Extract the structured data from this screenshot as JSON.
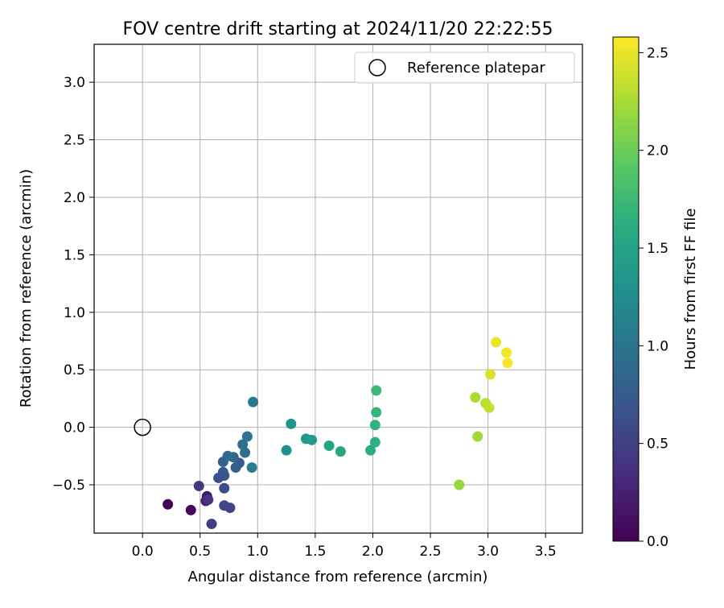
{
  "chart_data": {
    "type": "scatter",
    "title": "FOV centre drift starting at 2024/11/20 22:22:55",
    "xlabel": "Angular distance from reference (arcmin)",
    "ylabel": "Rotation from reference (arcmin)",
    "xlim": [
      -0.42,
      3.82
    ],
    "ylim": [
      -0.92,
      3.33
    ],
    "xticks": [
      0.0,
      0.5,
      1.0,
      1.5,
      2.0,
      2.5,
      3.0,
      3.5
    ],
    "xtick_labels": [
      "0.0",
      "0.5",
      "1.0",
      "1.5",
      "2.0",
      "2.5",
      "3.0",
      "3.5"
    ],
    "yticks": [
      -0.5,
      0.0,
      0.5,
      1.0,
      1.5,
      2.0,
      2.5,
      3.0
    ],
    "ytick_labels": [
      "−0.5",
      "0.0",
      "0.5",
      "1.0",
      "1.5",
      "2.0",
      "2.5",
      "3.0"
    ],
    "grid": true,
    "legend": {
      "placement": "top-right",
      "entries": [
        {
          "label": "Reference platepar",
          "marker": "hollow-circle",
          "x": 0.0,
          "y": 0.0
        }
      ]
    },
    "colorbar": {
      "label": "Hours from first FF file",
      "colormap": "viridis",
      "range": [
        0.0,
        2.58
      ],
      "ticks": [
        0.0,
        0.5,
        1.0,
        1.5,
        2.0,
        2.5
      ],
      "tick_labels": [
        "0.0",
        "0.5",
        "1.0",
        "1.5",
        "2.0",
        "2.5"
      ]
    },
    "points": [
      {
        "x": 0.22,
        "y": -0.67,
        "c": 0.02
      },
      {
        "x": 0.42,
        "y": -0.72,
        "c": 0.06
      },
      {
        "x": 0.56,
        "y": -0.6,
        "c": 0.15
      },
      {
        "x": 0.55,
        "y": -0.64,
        "c": 0.22
      },
      {
        "x": 0.57,
        "y": -0.63,
        "c": 0.4
      },
      {
        "x": 0.49,
        "y": -0.51,
        "c": 0.44
      },
      {
        "x": 0.6,
        "y": -0.84,
        "c": 0.48
      },
      {
        "x": 0.76,
        "y": -0.7,
        "c": 0.52
      },
      {
        "x": 0.71,
        "y": -0.68,
        "c": 0.56
      },
      {
        "x": 0.71,
        "y": -0.53,
        "c": 0.6
      },
      {
        "x": 0.66,
        "y": -0.44,
        "c": 0.64
      },
      {
        "x": 0.71,
        "y": -0.42,
        "c": 0.68
      },
      {
        "x": 0.7,
        "y": -0.39,
        "c": 0.72
      },
      {
        "x": 0.84,
        "y": -0.31,
        "c": 0.75
      },
      {
        "x": 0.81,
        "y": -0.35,
        "c": 0.79
      },
      {
        "x": 0.7,
        "y": -0.3,
        "c": 0.83
      },
      {
        "x": 0.74,
        "y": -0.25,
        "c": 0.86
      },
      {
        "x": 0.79,
        "y": -0.26,
        "c": 0.9
      },
      {
        "x": 0.89,
        "y": -0.22,
        "c": 0.94
      },
      {
        "x": 0.87,
        "y": -0.15,
        "c": 0.97
      },
      {
        "x": 0.91,
        "y": -0.08,
        "c": 1.0
      },
      {
        "x": 0.96,
        "y": 0.22,
        "c": 1.05
      },
      {
        "x": 0.95,
        "y": -0.35,
        "c": 1.1
      },
      {
        "x": 1.25,
        "y": -0.2,
        "c": 1.28
      },
      {
        "x": 1.29,
        "y": 0.03,
        "c": 1.32
      },
      {
        "x": 1.42,
        "y": -0.1,
        "c": 1.37
      },
      {
        "x": 1.47,
        "y": -0.11,
        "c": 1.42
      },
      {
        "x": 1.62,
        "y": -0.16,
        "c": 1.5
      },
      {
        "x": 1.72,
        "y": -0.21,
        "c": 1.55
      },
      {
        "x": 1.98,
        "y": -0.2,
        "c": 1.62
      },
      {
        "x": 2.02,
        "y": -0.13,
        "c": 1.65
      },
      {
        "x": 2.02,
        "y": 0.02,
        "c": 1.68
      },
      {
        "x": 2.03,
        "y": 0.13,
        "c": 1.71
      },
      {
        "x": 2.03,
        "y": 0.32,
        "c": 1.74
      },
      {
        "x": 2.75,
        "y": -0.5,
        "c": 2.18
      },
      {
        "x": 2.91,
        "y": -0.08,
        "c": 2.22
      },
      {
        "x": 2.89,
        "y": 0.26,
        "c": 2.27
      },
      {
        "x": 2.98,
        "y": 0.21,
        "c": 2.31
      },
      {
        "x": 3.01,
        "y": 0.17,
        "c": 2.35
      },
      {
        "x": 3.02,
        "y": 0.46,
        "c": 2.44
      },
      {
        "x": 3.07,
        "y": 0.74,
        "c": 2.5
      },
      {
        "x": 3.16,
        "y": 0.65,
        "c": 2.53
      },
      {
        "x": 3.17,
        "y": 0.56,
        "c": 2.56
      }
    ]
  }
}
